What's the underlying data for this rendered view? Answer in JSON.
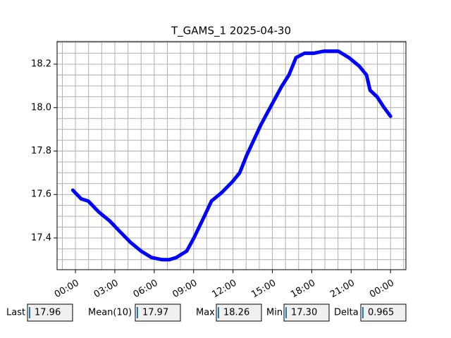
{
  "chart_data": {
    "type": "line",
    "title": "T_GAMS_1 2025-04-30",
    "x": [
      -0.2,
      0.43,
      0.97,
      1.77,
      2.58,
      3.38,
      4.19,
      4.99,
      5.8,
      6.6,
      7.14,
      7.68,
      8.48,
      9.02,
      9.82,
      10.36,
      11.16,
      11.97,
      12.51,
      13.04,
      13.58,
      14.12,
      14.65,
      15.19,
      15.73,
      16.26,
      16.8,
      17.44,
      18.14,
      18.95,
      20.02,
      20.83,
      21.63,
      22.17,
      22.44,
      22.97,
      23.51,
      24.0
    ],
    "series": [
      {
        "color": "#0000ff",
        "values": [
          17.62,
          17.58,
          17.57,
          17.52,
          17.48,
          17.43,
          17.38,
          17.34,
          17.31,
          17.3,
          17.3,
          17.31,
          17.34,
          17.4,
          17.5,
          17.57,
          17.61,
          17.66,
          17.7,
          17.78,
          17.85,
          17.92,
          17.98,
          18.04,
          18.1,
          18.15,
          18.23,
          18.25,
          18.25,
          18.26,
          18.26,
          18.23,
          18.19,
          18.15,
          18.08,
          18.05,
          18.0,
          17.96
        ]
      }
    ],
    "xlim": [
      -1.4,
      25.17
    ],
    "ylim": [
      17.254,
      18.304
    ],
    "xticks": [
      {
        "value": 0,
        "label": "00:00"
      },
      {
        "value": 3,
        "label": "03:00"
      },
      {
        "value": 6,
        "label": "06:00"
      },
      {
        "value": 9,
        "label": "09:00"
      },
      {
        "value": 12,
        "label": "12:00"
      },
      {
        "value": 15,
        "label": "15:00"
      },
      {
        "value": 18,
        "label": "18:00"
      },
      {
        "value": 21,
        "label": "21:00"
      },
      {
        "value": 24,
        "label": "00:00"
      }
    ],
    "yticks": [
      17.4,
      17.6,
      17.8,
      {
        "value": 18,
        "label": "18.0"
      },
      18.2
    ],
    "minor_xticks": [
      -1,
      1,
      2,
      4,
      5,
      7,
      8,
      10,
      11,
      13,
      14,
      16,
      17,
      19,
      20,
      22,
      23,
      25
    ],
    "minor_yticks": [
      17.3,
      17.35,
      17.45,
      17.5,
      17.55,
      17.65,
      17.7,
      17.75,
      17.85,
      17.9,
      17.95,
      18.05,
      18.1,
      18.15,
      18.25,
      18.3
    ],
    "grid": true
  },
  "widgets": [
    {
      "label": "Last",
      "value": "17.96"
    },
    {
      "label": "Mean(10)",
      "value": "17.97"
    },
    {
      "label": "Max",
      "value": "18.26"
    },
    {
      "label": "Min",
      "value": "17.30"
    },
    {
      "label": "Delta",
      "value": "0.965"
    }
  ]
}
